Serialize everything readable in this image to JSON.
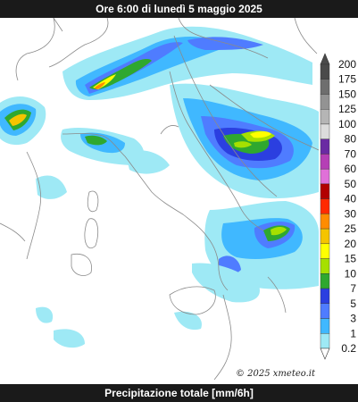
{
  "header": {
    "title": "Ore 6:00 di lunedì 5 maggio 2025"
  },
  "footer": {
    "caption": "Precipitazione totale [mm/6h]"
  },
  "map": {
    "copyright": "© 2025 xmeteo.it"
  },
  "legend": {
    "levels": [
      {
        "label": "200",
        "color": "#4a4a4a"
      },
      {
        "label": "175",
        "color": "#6e6e6e"
      },
      {
        "label": "150",
        "color": "#939393"
      },
      {
        "label": "125",
        "color": "#b5b5b5"
      },
      {
        "label": "100",
        "color": "#dcdcdc"
      },
      {
        "label": "80",
        "color": "#6a2aa3"
      },
      {
        "label": "70",
        "color": "#b53fb5"
      },
      {
        "label": "60",
        "color": "#e070d8"
      },
      {
        "label": "50",
        "color": "#b20000"
      },
      {
        "label": "40",
        "color": "#ff2a00"
      },
      {
        "label": "30",
        "color": "#ff8c00"
      },
      {
        "label": "25",
        "color": "#f5c400"
      },
      {
        "label": "20",
        "color": "#ffff00"
      },
      {
        "label": "15",
        "color": "#a6e000"
      },
      {
        "label": "10",
        "color": "#2fa82f"
      },
      {
        "label": "7",
        "color": "#2b3fe0"
      },
      {
        "label": "5",
        "color": "#4f7cff"
      },
      {
        "label": "3",
        "color": "#40b8ff"
      },
      {
        "label": "1",
        "color": "#9ee9f5"
      },
      {
        "label": "0.2",
        "color": "#ffffff"
      }
    ]
  }
}
